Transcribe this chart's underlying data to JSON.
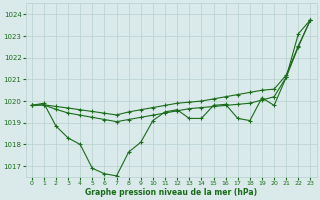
{
  "xlabel": "Graphe pression niveau de la mer (hPa)",
  "xlim": [
    -0.5,
    23.5
  ],
  "ylim": [
    1016.5,
    1024.5
  ],
  "yticks": [
    1017,
    1018,
    1019,
    1020,
    1021,
    1022,
    1023,
    1024
  ],
  "xticks": [
    0,
    1,
    2,
    3,
    4,
    5,
    6,
    7,
    8,
    9,
    10,
    11,
    12,
    13,
    14,
    15,
    16,
    17,
    18,
    19,
    20,
    21,
    22,
    23
  ],
  "bg_color": "#daeaea",
  "grid_color": "#b8d0d0",
  "line_color": "#1a6b1a",
  "line1": [
    1019.8,
    1019.9,
    1018.85,
    1018.3,
    1018.0,
    1016.9,
    1016.65,
    1016.55,
    1017.65,
    1018.1,
    1019.1,
    1019.5,
    1019.6,
    1019.2,
    1019.2,
    1019.8,
    1019.85,
    1019.2,
    1019.1,
    1020.15,
    1019.8,
    1021.1,
    1023.1,
    1023.75
  ],
  "line2": [
    1019.8,
    1019.82,
    1019.62,
    1019.45,
    1019.35,
    1019.25,
    1019.15,
    1019.05,
    1019.15,
    1019.25,
    1019.35,
    1019.45,
    1019.55,
    1019.65,
    1019.7,
    1019.75,
    1019.8,
    1019.85,
    1019.9,
    1020.05,
    1020.2,
    1021.1,
    1022.5,
    1023.75
  ],
  "line3": [
    1019.8,
    1019.83,
    1019.75,
    1019.68,
    1019.6,
    1019.52,
    1019.44,
    1019.36,
    1019.5,
    1019.6,
    1019.7,
    1019.8,
    1019.9,
    1019.95,
    1020.0,
    1020.1,
    1020.2,
    1020.3,
    1020.4,
    1020.5,
    1020.55,
    1021.2,
    1022.55,
    1023.75
  ]
}
